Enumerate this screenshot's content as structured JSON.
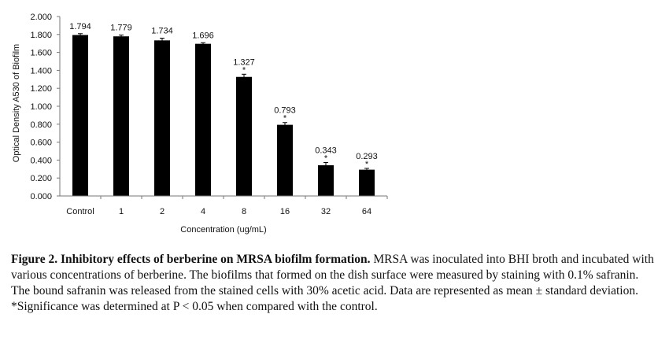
{
  "chart_data": {
    "type": "bar",
    "categories": [
      "Control",
      "1",
      "2",
      "4",
      "8",
      "16",
      "32",
      "64"
    ],
    "values": [
      1.794,
      1.779,
      1.734,
      1.696,
      1.327,
      0.793,
      0.343,
      0.293
    ],
    "value_labels": [
      "1.794",
      "1.779",
      "1.734",
      "1.696",
      "1.327",
      "0.793",
      "0.343",
      "0.293"
    ],
    "errors": [
      0.015,
      0.015,
      0.025,
      0.012,
      0.03,
      0.025,
      0.03,
      0.015
    ],
    "significant": [
      false,
      false,
      false,
      false,
      true,
      true,
      true,
      true
    ],
    "significance_marker": "*",
    "ylim": [
      0,
      2.0
    ],
    "yticks": [
      "0.000",
      "0.200",
      "0.400",
      "0.600",
      "0.800",
      "1.000",
      "1.200",
      "1.400",
      "1.600",
      "1.800",
      "2.000"
    ],
    "xlabel": "Concentration (ug/mL)",
    "ylabel": "Optical Density A530 of Biofilm",
    "bar_color": "#000000",
    "grid": false
  },
  "caption": {
    "heading": "Figure 2.  Inhibitory effects of berberine on MRSA biofilm formation.",
    "body": " MRSA was inoculated into BHI broth and incubated with various concentrations of berberine. The biofilms that formed on the dish surface were measured by staining with 0.1% safranin. The bound safranin was released from the stained cells with 30% acetic acid. Data are represented as mean ± standard deviation. *Significance was determined at P < 0.05 when compared with the control."
  }
}
